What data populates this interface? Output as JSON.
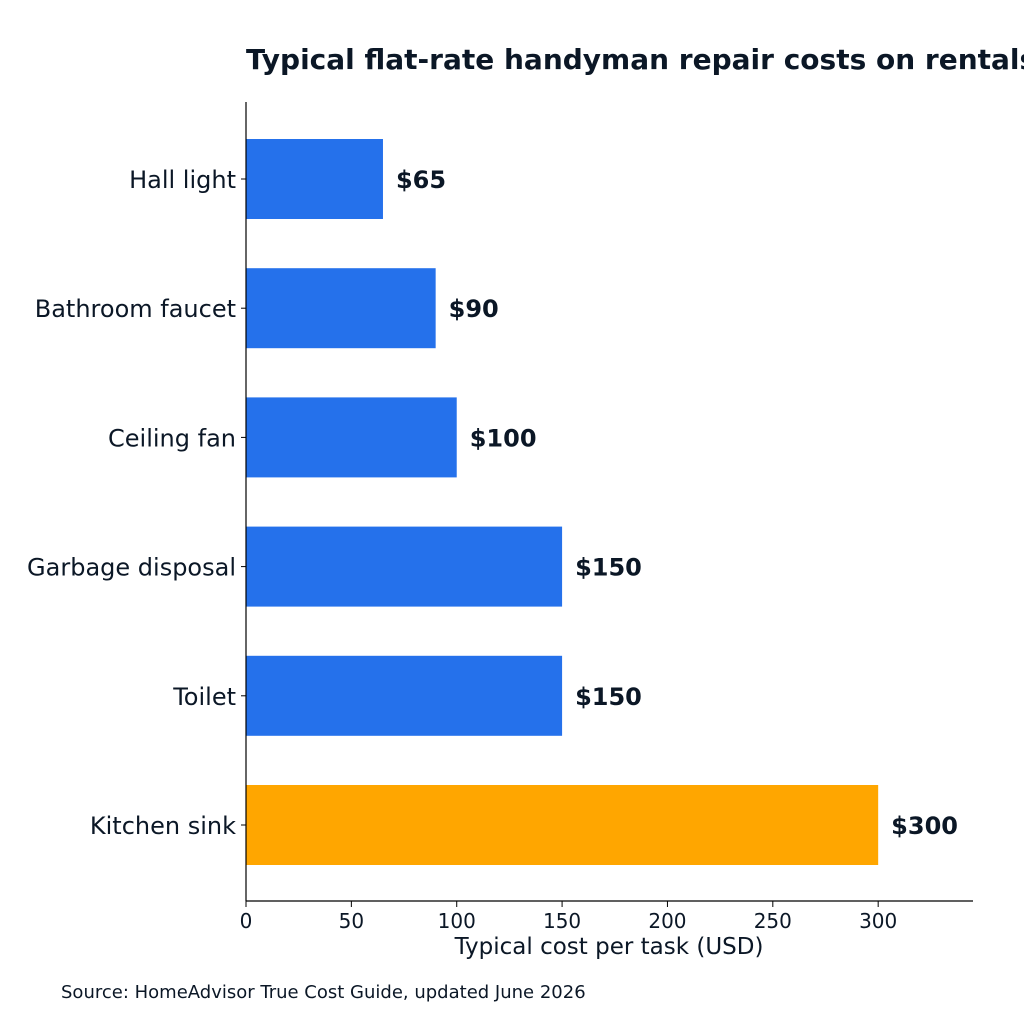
{
  "chart_data": {
    "type": "bar",
    "orientation": "horizontal",
    "title": "Typical flat-rate handyman repair costs on rentals",
    "xlabel": "Typical cost per task (USD)",
    "ylabel": "",
    "categories": [
      "Hall light",
      "Bathroom faucet",
      "Ceiling fan",
      "Garbage disposal",
      "Toilet",
      "Kitchen sink"
    ],
    "values": [
      65,
      90,
      100,
      150,
      150,
      300
    ],
    "value_labels": [
      "$65",
      "$90",
      "$100",
      "$150",
      "$150",
      "$300"
    ],
    "highlight_index": 5,
    "xlim": [
      0,
      345
    ],
    "xticks": [
      0,
      50,
      100,
      150,
      200,
      250,
      300
    ],
    "grid": false,
    "colors": {
      "bar": "#2571eb",
      "highlight": "#ffa600",
      "text": "#0b1726",
      "axis": "#000000"
    }
  },
  "source": "Source: HomeAdvisor True Cost Guide, updated June 2026"
}
